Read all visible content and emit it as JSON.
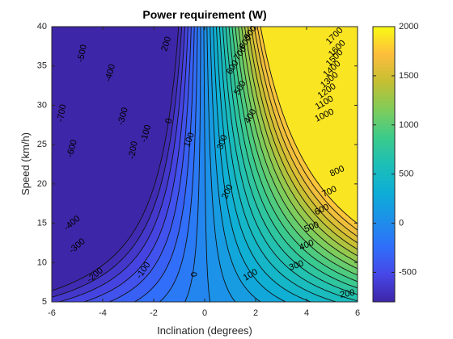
{
  "chart_data": {
    "type": "heatmap",
    "subtype": "filled-contour",
    "title": "Power requirement (W)",
    "xlabel": "Inclination (degrees)",
    "ylabel": "Speed (km/h)",
    "xlim": [
      -6,
      6
    ],
    "ylim": [
      5,
      40
    ],
    "x_ticks": [
      "-6",
      "-4",
      "-2",
      "0",
      "2",
      "4",
      "6"
    ],
    "y_ticks": [
      "5",
      "10",
      "15",
      "20",
      "25",
      "30",
      "35",
      "40"
    ],
    "colormap": "parula",
    "color_range": [
      -800,
      2000
    ],
    "colorbar_ticks": [
      "-500",
      "0",
      "500",
      "1000",
      "1500",
      "2000"
    ],
    "colorbar_tick_values": [
      -500,
      0,
      500,
      1000,
      1500,
      2000
    ],
    "contour_levels": [
      -800,
      -700,
      -600,
      -500,
      -400,
      -300,
      -200,
      -100,
      0,
      100,
      200,
      300,
      400,
      500,
      600,
      700,
      800,
      900,
      1000,
      1100,
      1200,
      1300,
      1400,
      1500,
      1600,
      1700,
      1800
    ],
    "contour_labels": [
      {
        "text": "-500",
        "x": -4.8,
        "y": 36.6,
        "rot": -78
      },
      {
        "text": "-400",
        "x": -3.7,
        "y": 34.1,
        "rot": -75
      },
      {
        "text": "-300",
        "x": -3.2,
        "y": 28.6,
        "rot": -75
      },
      {
        "text": "-700",
        "x": -5.6,
        "y": 29.0,
        "rot": -80
      },
      {
        "text": "-600",
        "x": -5.2,
        "y": 24.5,
        "rot": -75
      },
      {
        "text": "-200",
        "x": -2.8,
        "y": 24.3,
        "rot": -80
      },
      {
        "text": "-100",
        "x": -2.3,
        "y": 26.4,
        "rot": -75
      },
      {
        "text": "0",
        "x": -1.4,
        "y": 28.0,
        "rot": -75
      },
      {
        "text": "100",
        "x": -0.6,
        "y": 25.6,
        "rot": -70
      },
      {
        "text": "200",
        "x": -1.5,
        "y": 37.8,
        "rot": -72
      },
      {
        "text": "300",
        "x": 0.7,
        "y": 25.3,
        "rot": -70
      },
      {
        "text": "400",
        "x": 1.8,
        "y": 28.6,
        "rot": -60
      },
      {
        "text": "500",
        "x": 1.4,
        "y": 32.2,
        "rot": -60
      },
      {
        "text": "600",
        "x": 1.1,
        "y": 34.8,
        "rot": -58
      },
      {
        "text": "700",
        "x": 1.4,
        "y": 36.6,
        "rot": -55
      },
      {
        "text": "800",
        "x": 1.6,
        "y": 38.0,
        "rot": -55
      },
      {
        "text": "900",
        "x": 1.8,
        "y": 39.2,
        "rot": -55
      },
      {
        "text": "1000",
        "x": 4.7,
        "y": 28.7,
        "rot": -25
      },
      {
        "text": "1100",
        "x": 4.7,
        "y": 30.3,
        "rot": -30
      },
      {
        "text": "1200",
        "x": 4.8,
        "y": 31.8,
        "rot": -35
      },
      {
        "text": "1300",
        "x": 4.9,
        "y": 33.2,
        "rot": -40
      },
      {
        "text": "1400",
        "x": 5.0,
        "y": 34.6,
        "rot": -42
      },
      {
        "text": "1500",
        "x": 5.1,
        "y": 36.0,
        "rot": -45
      },
      {
        "text": "1600",
        "x": 5.2,
        "y": 37.2,
        "rot": -45
      },
      {
        "text": "1700",
        "x": 5.1,
        "y": 38.8,
        "rot": -45
      },
      {
        "text": "800",
        "x": 5.2,
        "y": 21.6,
        "rot": -25
      },
      {
        "text": "700",
        "x": 4.9,
        "y": 19.0,
        "rot": -25
      },
      {
        "text": "600",
        "x": 4.6,
        "y": 16.7,
        "rot": -25
      },
      {
        "text": "500",
        "x": 4.2,
        "y": 14.5,
        "rot": -22
      },
      {
        "text": "400",
        "x": 4.0,
        "y": 12.2,
        "rot": -22
      },
      {
        "text": "300",
        "x": 3.6,
        "y": 9.6,
        "rot": -20
      },
      {
        "text": "200",
        "x": 5.6,
        "y": 6.0,
        "rot": -10
      },
      {
        "text": "100",
        "x": 1.8,
        "y": 8.4,
        "rot": -30
      },
      {
        "text": "0",
        "x": -0.4,
        "y": 8.5,
        "rot": -90
      },
      {
        "text": "-100",
        "x": -2.4,
        "y": 9.0,
        "rot": -55
      },
      {
        "text": "-200",
        "x": -4.3,
        "y": 8.4,
        "rot": -40
      },
      {
        "text": "-300",
        "x": -5.0,
        "y": 12.1,
        "rot": -40
      },
      {
        "text": "-400",
        "x": -5.2,
        "y": 15.0,
        "rot": -40
      },
      {
        "text": "200",
        "x": 0.9,
        "y": 19.0,
        "rot": -65
      }
    ]
  }
}
